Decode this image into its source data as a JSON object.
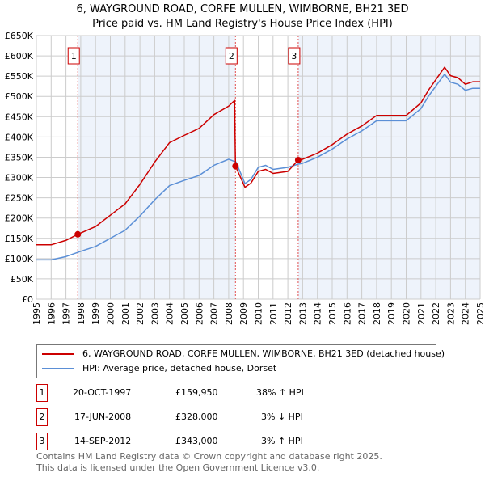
{
  "chart_data": {
    "type": "line",
    "title": "6, WAYGROUND ROAD, CORFE MULLEN, WIMBORNE, BH21 3ED",
    "subtitle": "Price paid vs. HM Land Registry's House Price Index (HPI)",
    "xlim": [
      1995,
      2025
    ],
    "ylim": [
      0,
      650000
    ],
    "x_ticks": [
      "1995",
      "1996",
      "1997",
      "1998",
      "1999",
      "2000",
      "2001",
      "2002",
      "2003",
      "2004",
      "2005",
      "2006",
      "2007",
      "2008",
      "2009",
      "2010",
      "2011",
      "2012",
      "2013",
      "2014",
      "2015",
      "2016",
      "2017",
      "2018",
      "2019",
      "2020",
      "2021",
      "2022",
      "2023",
      "2024",
      "2025"
    ],
    "y_ticks": [
      {
        "v": 0,
        "label": "£0"
      },
      {
        "v": 50000,
        "label": "£50K"
      },
      {
        "v": 100000,
        "label": "£100K"
      },
      {
        "v": 150000,
        "label": "£150K"
      },
      {
        "v": 200000,
        "label": "£200K"
      },
      {
        "v": 250000,
        "label": "£250K"
      },
      {
        "v": 300000,
        "label": "£300K"
      },
      {
        "v": 350000,
        "label": "£350K"
      },
      {
        "v": 400000,
        "label": "£400K"
      },
      {
        "v": 450000,
        "label": "£450K"
      },
      {
        "v": 500000,
        "label": "£500K"
      },
      {
        "v": 550000,
        "label": "£550K"
      },
      {
        "v": 600000,
        "label": "£600K"
      },
      {
        "v": 650000,
        "label": "£650K"
      }
    ],
    "grid": true,
    "series": [
      {
        "name": "6, WAYGROUND ROAD, CORFE MULLEN, WIMBORNE, BH21 3ED (detached house)",
        "color": "#cc0000",
        "points": [
          [
            1995,
            134000
          ],
          [
            1996,
            134000
          ],
          [
            1997,
            145000
          ],
          [
            1997.8,
            160000
          ],
          [
            1998,
            163000
          ],
          [
            1999,
            179000
          ],
          [
            2000,
            207000
          ],
          [
            2001,
            235000
          ],
          [
            2002,
            283000
          ],
          [
            2003,
            338000
          ],
          [
            2004,
            386000
          ],
          [
            2005,
            404000
          ],
          [
            2006,
            421000
          ],
          [
            2007,
            455000
          ],
          [
            2008,
            476000
          ],
          [
            2008.4,
            490000
          ],
          [
            2008.46,
            328000
          ],
          [
            2009.1,
            276000
          ],
          [
            2009.5,
            286000
          ],
          [
            2010,
            315000
          ],
          [
            2010.5,
            320000
          ],
          [
            2011,
            310000
          ],
          [
            2012,
            315000
          ],
          [
            2012.7,
            343000
          ],
          [
            2013,
            345000
          ],
          [
            2014,
            360000
          ],
          [
            2015,
            381000
          ],
          [
            2016,
            407000
          ],
          [
            2017,
            427000
          ],
          [
            2018,
            453000
          ],
          [
            2019,
            453000
          ],
          [
            2020,
            453000
          ],
          [
            2021,
            484000
          ],
          [
            2021.5,
            515000
          ],
          [
            2022,
            541000
          ],
          [
            2022.6,
            572000
          ],
          [
            2023,
            551000
          ],
          [
            2023.5,
            546000
          ],
          [
            2024,
            530000
          ],
          [
            2024.5,
            536000
          ],
          [
            2025,
            536000
          ]
        ]
      },
      {
        "name": "HPI: Average price, detached house, Dorset",
        "color": "#5b8fd6",
        "points": [
          [
            1995,
            97000
          ],
          [
            1996,
            97000
          ],
          [
            1997,
            105000
          ],
          [
            1998,
            118000
          ],
          [
            1999,
            130000
          ],
          [
            2000,
            150000
          ],
          [
            2001,
            170000
          ],
          [
            2002,
            205000
          ],
          [
            2003,
            245000
          ],
          [
            2004,
            280000
          ],
          [
            2005,
            293000
          ],
          [
            2006,
            305000
          ],
          [
            2007,
            330000
          ],
          [
            2008,
            345000
          ],
          [
            2008.5,
            338000
          ],
          [
            2009.1,
            285000
          ],
          [
            2009.5,
            295000
          ],
          [
            2010,
            325000
          ],
          [
            2010.5,
            330000
          ],
          [
            2011,
            320000
          ],
          [
            2012,
            325000
          ],
          [
            2012.7,
            333000
          ],
          [
            2013,
            335000
          ],
          [
            2014,
            350000
          ],
          [
            2015,
            370000
          ],
          [
            2016,
            395000
          ],
          [
            2017,
            415000
          ],
          [
            2018,
            440000
          ],
          [
            2019,
            440000
          ],
          [
            2020,
            440000
          ],
          [
            2021,
            470000
          ],
          [
            2021.5,
            500000
          ],
          [
            2022,
            525000
          ],
          [
            2022.6,
            555000
          ],
          [
            2023,
            535000
          ],
          [
            2023.5,
            530000
          ],
          [
            2024,
            515000
          ],
          [
            2024.5,
            520000
          ],
          [
            2025,
            520000
          ]
        ]
      }
    ],
    "sales": [
      {
        "id": "1",
        "x": 1997.8,
        "y": 159950,
        "date": "20-OCT-1997",
        "price": "£159,950",
        "hpi": "38% ↑ HPI"
      },
      {
        "id": "2",
        "x": 2008.46,
        "y": 328000,
        "date": "17-JUN-2008",
        "price": "£328,000",
        "hpi": "3% ↓ HPI"
      },
      {
        "id": "3",
        "x": 2012.7,
        "y": 343000,
        "date": "14-SEP-2012",
        "price": "£343,000",
        "hpi": "3% ↑ HPI"
      }
    ],
    "legend_placement": "bottom"
  },
  "footer": {
    "line1": "Contains HM Land Registry data © Crown copyright and database right 2025.",
    "line2": "This data is licensed under the Open Government Licence v3.0."
  }
}
